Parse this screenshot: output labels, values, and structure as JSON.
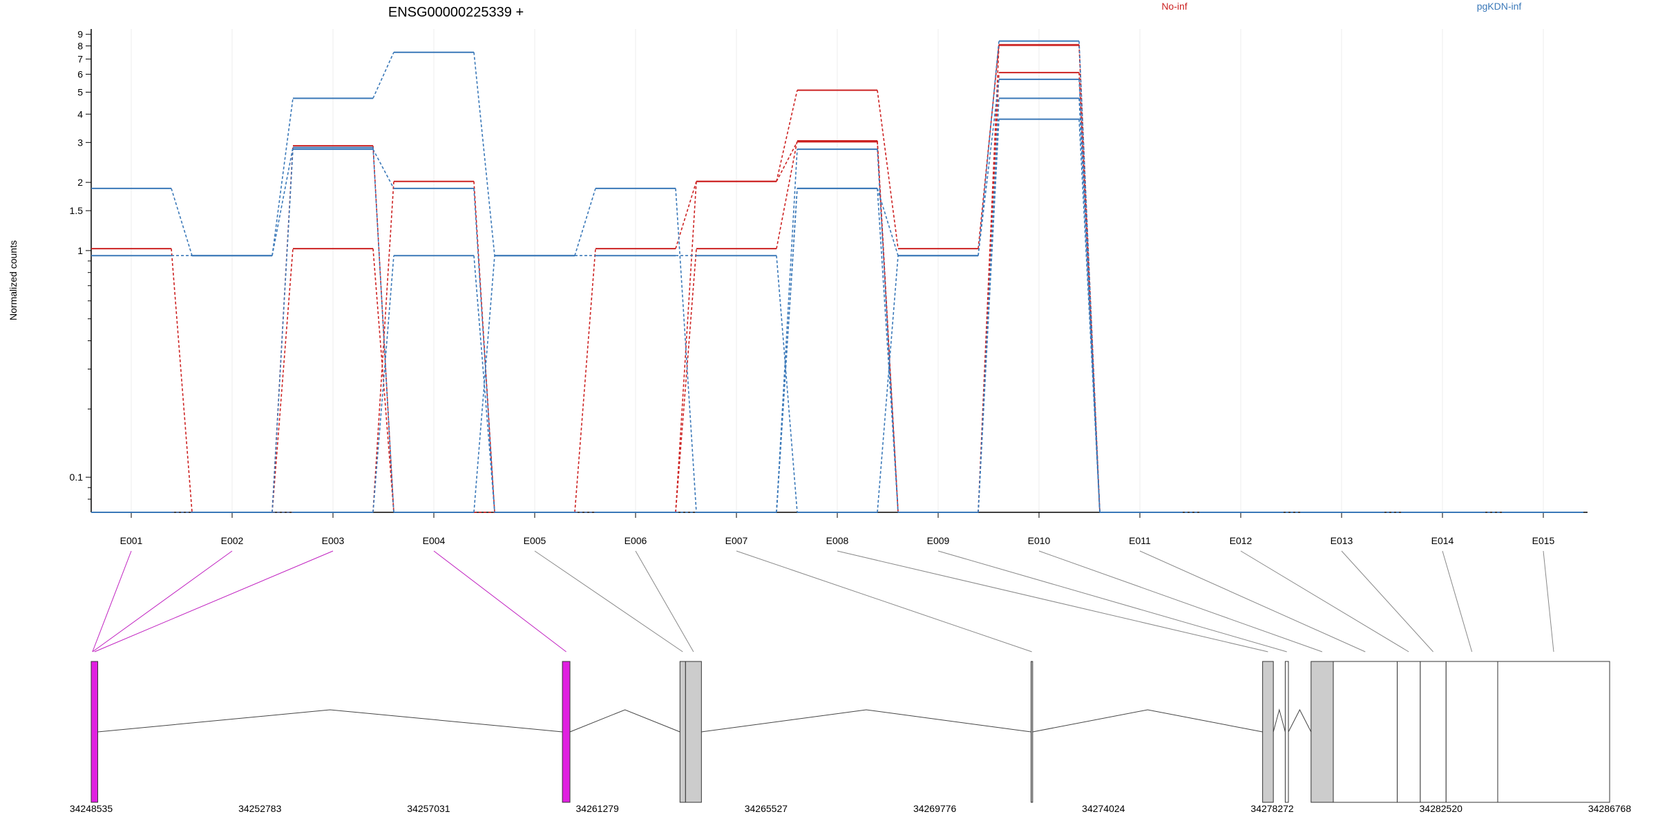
{
  "chart_data": {
    "type": "line",
    "title": "ENSG00000225339 +",
    "xlabel": "",
    "ylabel": "Normalized counts",
    "y_scale": "log",
    "ylim": [
      0.07,
      9.5
    ],
    "y_ticks": [
      0.1,
      1,
      1.5,
      2,
      3,
      4,
      5,
      6,
      7,
      8,
      9
    ],
    "y_tick_labels": [
      "0.1",
      "1",
      "1.5",
      "2",
      "3",
      "4",
      "5",
      "6",
      "7",
      "8",
      "9"
    ],
    "grid": "vertical",
    "legend_position": "top",
    "categories": [
      "E001",
      "E002",
      "E003",
      "E004",
      "E005",
      "E006",
      "E007",
      "E008",
      "E009",
      "E010",
      "E011",
      "E012",
      "E013",
      "E014",
      "E015"
    ],
    "series": [
      {
        "name": "No-inf",
        "color": "#cc2222",
        "values": [
          1.02,
          0,
          0,
          2.02,
          0,
          1.02,
          2.02,
          5.1,
          1.02,
          8.1,
          0,
          0,
          0,
          0,
          0
        ]
      },
      {
        "name": "No-inf",
        "color": "#cc2222",
        "values": [
          0,
          0,
          1.02,
          0,
          0,
          0,
          1.02,
          3.05,
          0,
          6.1,
          0,
          0,
          0,
          0,
          0
        ]
      },
      {
        "name": "No-inf",
        "color": "#cc2222",
        "values": [
          0,
          0,
          2.9,
          0,
          0,
          0,
          2.02,
          3.02,
          0,
          8.05,
          0,
          0,
          0,
          0,
          0
        ]
      },
      {
        "name": "pgKDN-inf",
        "color": "#3a78b8",
        "values": [
          1.88,
          0.95,
          2.85,
          0,
          0.95,
          1.88,
          0,
          1.88,
          0.95,
          8.4,
          0,
          0,
          0,
          0,
          0
        ]
      },
      {
        "name": "pgKDN-inf",
        "color": "#3a78b8",
        "values": [
          0.95,
          0.95,
          4.7,
          7.5,
          0.95,
          0.95,
          0.95,
          0,
          0.95,
          5.7,
          0,
          0,
          0,
          0,
          0
        ]
      },
      {
        "name": "pgKDN-inf",
        "color": "#3a78b8",
        "values": [
          0,
          0,
          2.8,
          1.88,
          0,
          0,
          0,
          2.8,
          0,
          4.7,
          0,
          0,
          0,
          0,
          0
        ]
      },
      {
        "name": "pgKDN-inf",
        "color": "#3a78b8",
        "values": [
          0,
          0,
          0,
          0.95,
          0,
          0,
          0,
          1.88,
          0,
          3.8,
          0,
          0,
          0,
          0,
          0
        ]
      }
    ],
    "legend": [
      {
        "label": "No-inf",
        "color": "#cc2222"
      },
      {
        "label": "pgKDN-inf",
        "color": "#3a78b8"
      }
    ],
    "gene_model": {
      "genomic_range": [
        34248535,
        34286768
      ],
      "coordinate_labels": [
        "34248535",
        "34252783",
        "34257031",
        "34261279",
        "34265527",
        "34269776",
        "34274024",
        "34278272",
        "34282520",
        "34286768"
      ],
      "exons": [
        {
          "id": "E001",
          "start": 34248535,
          "end": 34248600,
          "fill": "#e020e0"
        },
        {
          "id": "E002",
          "start": 34248535,
          "end": 34248600,
          "fill": "#e020e0"
        },
        {
          "id": "E003",
          "start": 34248535,
          "end": 34248700,
          "fill": "#e020e0"
        },
        {
          "id": "E004",
          "start": 34260400,
          "end": 34260590,
          "fill": "#e020e0"
        },
        {
          "id": "E005",
          "start": 34263360,
          "end": 34263500,
          "fill": "#cccccc"
        },
        {
          "id": "E006",
          "start": 34263500,
          "end": 34263900,
          "fill": "#cccccc"
        },
        {
          "id": "E007",
          "start": 34272200,
          "end": 34272240,
          "fill": "#cccccc"
        },
        {
          "id": "E008",
          "start": 34278030,
          "end": 34278300,
          "fill": "#cccccc"
        },
        {
          "id": "E009",
          "start": 34278600,
          "end": 34278680,
          "fill": "#ffffff"
        },
        {
          "id": "E010",
          "start": 34279250,
          "end": 34279810,
          "fill": "#cccccc"
        },
        {
          "id": "E011",
          "start": 34279810,
          "end": 34281420,
          "fill": "#ffffff"
        },
        {
          "id": "E012",
          "start": 34281420,
          "end": 34282000,
          "fill": "#ffffff"
        },
        {
          "id": "E013",
          "start": 34282000,
          "end": 34282650,
          "fill": "#ffffff"
        },
        {
          "id": "E014",
          "start": 34282650,
          "end": 34283950,
          "fill": "#ffffff"
        },
        {
          "id": "E015",
          "start": 34283950,
          "end": 34286768,
          "fill": "#ffffff"
        }
      ]
    }
  }
}
